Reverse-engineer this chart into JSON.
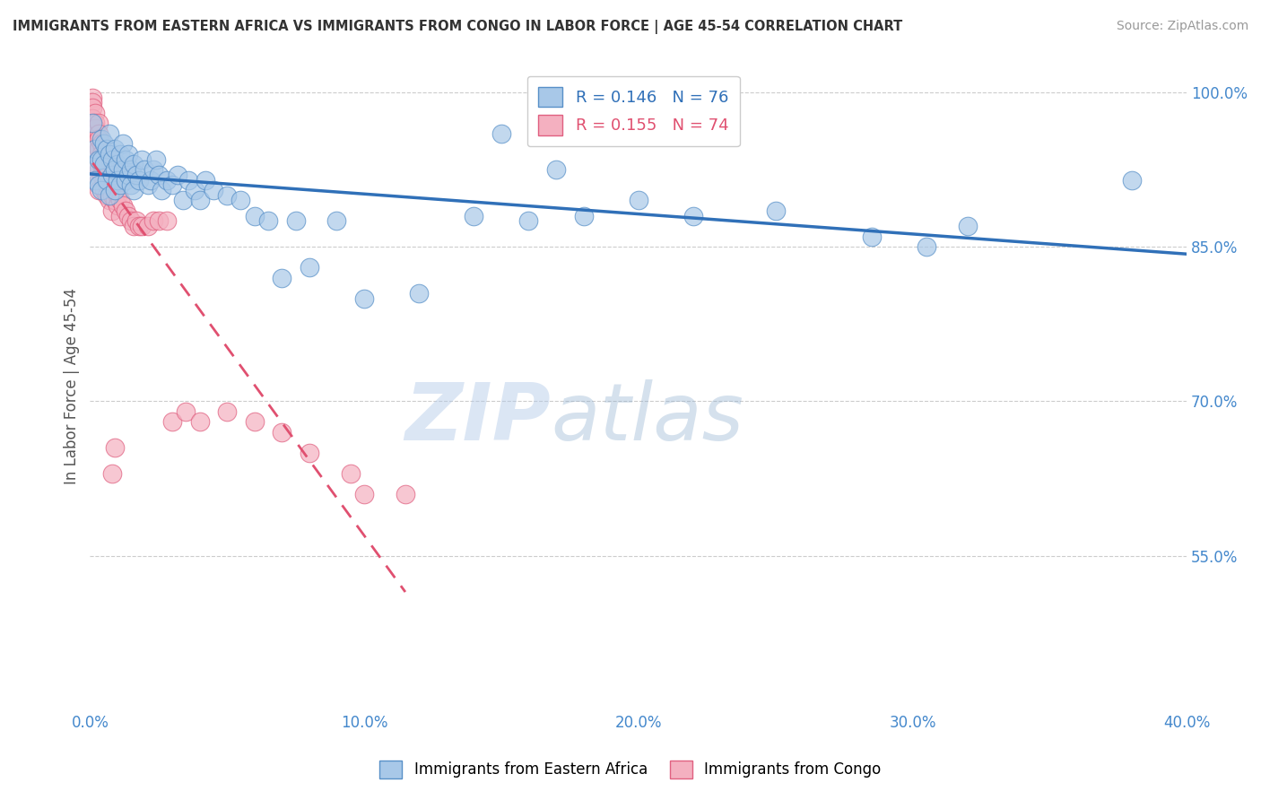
{
  "title": "IMMIGRANTS FROM EASTERN AFRICA VS IMMIGRANTS FROM CONGO IN LABOR FORCE | AGE 45-54 CORRELATION CHART",
  "source": "Source: ZipAtlas.com",
  "ylabel": "In Labor Force | Age 45-54",
  "xlim": [
    0.0,
    0.4
  ],
  "ylim": [
    0.4,
    1.03
  ],
  "xticks": [
    0.0,
    0.05,
    0.1,
    0.15,
    0.2,
    0.25,
    0.3,
    0.35,
    0.4
  ],
  "xticklabels": [
    "0.0%",
    "",
    "10.0%",
    "",
    "20.0%",
    "",
    "30.0%",
    "",
    "40.0%"
  ],
  "yticks": [
    0.55,
    0.7,
    0.85,
    1.0
  ],
  "yticklabels": [
    "55.0%",
    "70.0%",
    "85.0%",
    "100.0%"
  ],
  "blue_color": "#a8c8e8",
  "pink_color": "#f4b0c0",
  "blue_edge_color": "#5890c8",
  "pink_edge_color": "#e06080",
  "blue_line_color": "#3070b8",
  "pink_line_color": "#e05070",
  "R_blue": 0.146,
  "N_blue": 76,
  "R_pink": 0.155,
  "N_pink": 74,
  "watermark_zip": "ZIP",
  "watermark_atlas": "atlas",
  "blue_scatter_x": [
    0.001,
    0.001,
    0.002,
    0.002,
    0.003,
    0.003,
    0.004,
    0.004,
    0.004,
    0.005,
    0.005,
    0.006,
    0.006,
    0.007,
    0.007,
    0.007,
    0.008,
    0.008,
    0.009,
    0.009,
    0.009,
    0.01,
    0.01,
    0.011,
    0.011,
    0.012,
    0.012,
    0.013,
    0.013,
    0.014,
    0.014,
    0.015,
    0.015,
    0.016,
    0.016,
    0.017,
    0.018,
    0.019,
    0.02,
    0.021,
    0.022,
    0.023,
    0.024,
    0.025,
    0.026,
    0.028,
    0.03,
    0.032,
    0.034,
    0.036,
    0.038,
    0.04,
    0.042,
    0.045,
    0.05,
    0.055,
    0.06,
    0.065,
    0.07,
    0.075,
    0.08,
    0.09,
    0.1,
    0.12,
    0.14,
    0.16,
    0.18,
    0.2,
    0.22,
    0.25,
    0.15,
    0.17,
    0.285,
    0.305,
    0.32,
    0.38
  ],
  "blue_scatter_y": [
    0.97,
    0.93,
    0.945,
    0.915,
    0.935,
    0.91,
    0.955,
    0.935,
    0.905,
    0.95,
    0.93,
    0.945,
    0.915,
    0.96,
    0.94,
    0.9,
    0.935,
    0.92,
    0.945,
    0.925,
    0.905,
    0.93,
    0.915,
    0.94,
    0.91,
    0.95,
    0.925,
    0.935,
    0.915,
    0.94,
    0.92,
    0.925,
    0.91,
    0.93,
    0.905,
    0.92,
    0.915,
    0.935,
    0.925,
    0.91,
    0.915,
    0.925,
    0.935,
    0.92,
    0.905,
    0.915,
    0.91,
    0.92,
    0.895,
    0.915,
    0.905,
    0.895,
    0.915,
    0.905,
    0.9,
    0.895,
    0.88,
    0.875,
    0.82,
    0.875,
    0.83,
    0.875,
    0.8,
    0.805,
    0.88,
    0.875,
    0.88,
    0.895,
    0.88,
    0.885,
    0.96,
    0.925,
    0.86,
    0.85,
    0.87,
    0.915
  ],
  "pink_scatter_x": [
    0.001,
    0.001,
    0.001,
    0.001,
    0.001,
    0.001,
    0.001,
    0.001,
    0.001,
    0.001,
    0.001,
    0.002,
    0.002,
    0.002,
    0.002,
    0.002,
    0.002,
    0.002,
    0.003,
    0.003,
    0.003,
    0.003,
    0.003,
    0.003,
    0.003,
    0.003,
    0.004,
    0.004,
    0.004,
    0.004,
    0.005,
    0.005,
    0.005,
    0.005,
    0.006,
    0.006,
    0.006,
    0.006,
    0.007,
    0.007,
    0.007,
    0.008,
    0.008,
    0.008,
    0.009,
    0.009,
    0.01,
    0.01,
    0.011,
    0.011,
    0.012,
    0.013,
    0.014,
    0.015,
    0.016,
    0.017,
    0.018,
    0.019,
    0.021,
    0.023,
    0.025,
    0.028,
    0.03,
    0.035,
    0.04,
    0.05,
    0.06,
    0.07,
    0.08,
    0.095,
    0.1,
    0.115,
    0.008,
    0.009
  ],
  "pink_scatter_y": [
    0.995,
    0.99,
    0.985,
    0.975,
    0.97,
    0.965,
    0.96,
    0.955,
    0.95,
    0.945,
    0.94,
    0.98,
    0.97,
    0.965,
    0.955,
    0.95,
    0.945,
    0.93,
    0.97,
    0.96,
    0.955,
    0.945,
    0.935,
    0.925,
    0.915,
    0.905,
    0.95,
    0.94,
    0.93,
    0.92,
    0.935,
    0.925,
    0.915,
    0.905,
    0.93,
    0.92,
    0.91,
    0.9,
    0.915,
    0.905,
    0.895,
    0.91,
    0.9,
    0.885,
    0.905,
    0.895,
    0.9,
    0.89,
    0.895,
    0.88,
    0.89,
    0.885,
    0.88,
    0.875,
    0.87,
    0.875,
    0.87,
    0.87,
    0.87,
    0.875,
    0.875,
    0.875,
    0.68,
    0.69,
    0.68,
    0.69,
    0.68,
    0.67,
    0.65,
    0.63,
    0.61,
    0.61,
    0.63,
    0.655
  ]
}
